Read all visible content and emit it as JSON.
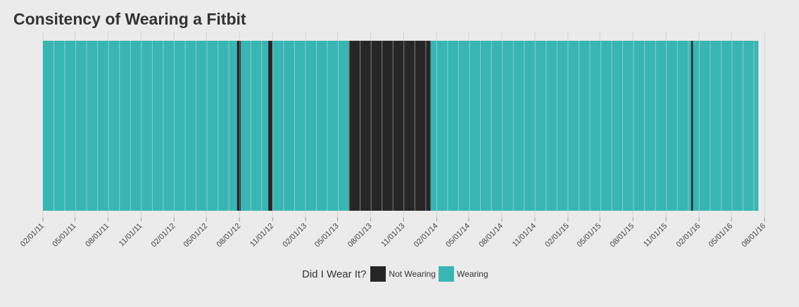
{
  "chart_data": {
    "type": "bar",
    "title": "Consitency of Wearing a Fitbit",
    "xlabel": "",
    "ylabel": "",
    "x_ticks": [
      "02/01/11",
      "05/01/11",
      "08/01/11",
      "11/01/11",
      "02/01/12",
      "05/01/12",
      "08/01/12",
      "11/01/12",
      "02/01/13",
      "05/01/13",
      "08/01/13",
      "11/01/13",
      "02/01/14",
      "05/01/14",
      "08/01/14",
      "11/01/14",
      "02/01/15",
      "05/01/15",
      "08/01/15",
      "11/01/15",
      "02/01/16",
      "05/01/16",
      "08/01/16"
    ],
    "x_range": [
      "2011-02-01",
      "2016-08-01"
    ],
    "legend": {
      "title": "Did I Wear It?",
      "placement": "bottom",
      "entries": [
        {
          "label": "Not Wearing",
          "color": "#262626"
        },
        {
          "label": "Wearing",
          "color": "#38b6b3"
        }
      ]
    },
    "background": "#ebebeb",
    "grid": true,
    "periods": [
      {
        "start": "2011-02-01",
        "end": "2012-07-25",
        "status": "Wearing"
      },
      {
        "start": "2012-07-25",
        "end": "2012-08-05",
        "status": "Not Wearing"
      },
      {
        "start": "2012-08-05",
        "end": "2012-10-20",
        "status": "Wearing"
      },
      {
        "start": "2012-10-20",
        "end": "2012-11-01",
        "status": "Not Wearing"
      },
      {
        "start": "2012-11-01",
        "end": "2013-06-01",
        "status": "Wearing"
      },
      {
        "start": "2013-06-01",
        "end": "2014-01-15",
        "status": "Not Wearing"
      },
      {
        "start": "2014-01-15",
        "end": "2016-01-10",
        "status": "Wearing"
      },
      {
        "start": "2016-01-10",
        "end": "2016-01-15",
        "status": "Not Wearing"
      },
      {
        "start": "2016-01-15",
        "end": "2016-07-15",
        "status": "Wearing"
      }
    ]
  }
}
